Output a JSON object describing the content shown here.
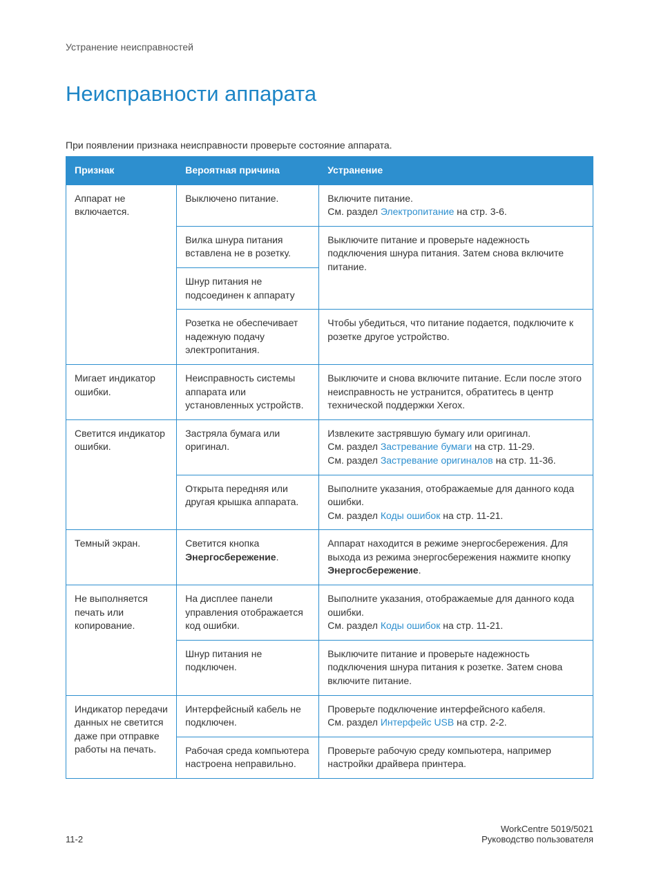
{
  "breadcrumb": "Устранение неисправностей",
  "title": "Неисправности аппарата",
  "intro": "При появлении признака неисправности проверьте состояние аппарата.",
  "table": {
    "columns": [
      "Признак",
      "Вероятная причина",
      "Устранение"
    ]
  },
  "rows": {
    "r1_symptom": "Аппарат не включается.",
    "r1a_cause": "Выключено питание.",
    "r1a_remedy_pre": "Включите питание.",
    "r1a_remedy_see": "См. раздел ",
    "r1a_remedy_link": "Электропитание",
    "r1a_remedy_post": " на стр. 3-6.",
    "r1b_cause": "Вилка шнура питания вставлена не в розетку.",
    "r1bc_remedy": "Выключите питание и проверьте надежность подключения шнура питания. Затем снова включите питание.",
    "r1c_cause": "Шнур питания не подсоединен к аппарату",
    "r1d_cause": "Розетка не обеспечивает надежную подачу электропитания.",
    "r1d_remedy": "Чтобы убедиться, что питание подается, подключите к розетке другое устройство.",
    "r2_symptom": "Мигает индикатор ошибки.",
    "r2_cause": "Неисправность системы аппарата или установленных устройств.",
    "r2_remedy": "Выключите и снова включите питание. Если после этого неисправность не устранится, обратитесь в центр технической поддержки Xerox.",
    "r3_symptom": "Светится индикатор ошибки.",
    "r3a_cause": "Застряла бумага или оригинал.",
    "r3a_remedy_l1": "Извлеките застрявшую бумагу или оригинал.",
    "r3a_remedy_see1": "См. раздел ",
    "r3a_remedy_link1": "Застревание бумаги",
    "r3a_remedy_post1": " на стр. 11-29.",
    "r3a_remedy_see2": "См. раздел ",
    "r3a_remedy_link2": "Застревание оригиналов",
    "r3a_remedy_post2": " на стр. 11-36.",
    "r3b_cause": "Открыта передняя или другая крышка аппарата.",
    "r3b_remedy_l1": "Выполните указания, отображаемые для данного кода ошибки.",
    "r3b_remedy_see": "См. раздел ",
    "r3b_remedy_link": "Коды ошибок",
    "r3b_remedy_post": " на стр. 11-21.",
    "r4_symptom": "Темный экран.",
    "r4_cause_pre": "Светится кнопка ",
    "r4_cause_bold": "Энергосбережение",
    "r4_cause_post": ".",
    "r4_remedy_pre": "Аппарат находится в режиме энергосбережения. Для выхода из режима энергосбережения нажмите кнопку ",
    "r4_remedy_bold": "Энергосбережение",
    "r4_remedy_post": ".",
    "r5_symptom": "Не выполняется печать или копирование.",
    "r5a_cause": "На дисплее панели управления отображается код ошибки.",
    "r5a_remedy_l1": "Выполните указания, отображаемые для данного кода ошибки.",
    "r5a_remedy_see": "См. раздел ",
    "r5a_remedy_link": "Коды ошибок",
    "r5a_remedy_post": " на стр. 11-21.",
    "r5b_cause": "Шнур питания не подключен.",
    "r5b_remedy": "Выключите питание и проверьте надежность подключения шнура питания к розетке. Затем снова включите питание.",
    "r6_symptom": "Индикатор передачи данных не светится даже при отправке работы на печать.",
    "r6a_cause": "Интерфейсный кабель не подключен.",
    "r6a_remedy_l1": "Проверьте подключение интерфейсного кабеля.",
    "r6a_remedy_see": "См. раздел ",
    "r6a_remedy_link": "Интерфейс USB",
    "r6a_remedy_post": " на стр. 2-2.",
    "r6b_cause": "Рабочая среда компьютера настроена неправильно.",
    "r6b_remedy": "Проверьте рабочую среду компьютера, например настройки драйвера принтера."
  },
  "footer": {
    "page": "11-2",
    "product": "WorkCentre 5019/5021",
    "doc": "Руководство пользователя"
  },
  "colors": {
    "accent": "#2d8fcf",
    "title": "#1d85c6",
    "text": "#333333",
    "background": "#ffffff"
  }
}
